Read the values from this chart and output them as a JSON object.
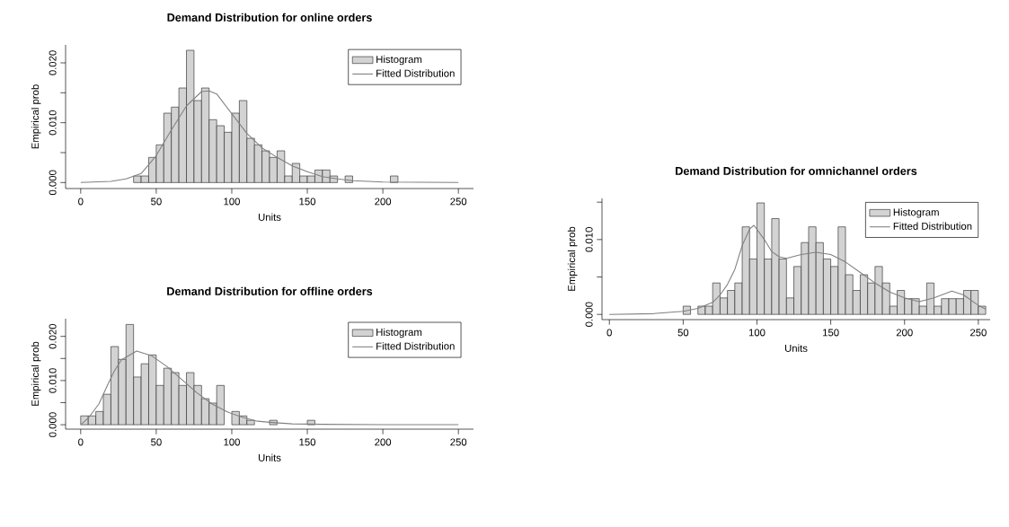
{
  "chart_data": [
    {
      "type": "histogram",
      "title": "Demand Distribution for online orders",
      "xlabel": "Units",
      "ylabel": "Empirical prob",
      "xlim": [
        -10,
        260
      ],
      "xticks": [
        0,
        50,
        100,
        150,
        200,
        250
      ],
      "ylim": [
        -0.001,
        0.023
      ],
      "yticks": [
        {
          "value": 0,
          "label": "0.000"
        },
        {
          "value": 0.005,
          "label": null
        },
        {
          "value": 0.01,
          "label": "0.010"
        },
        {
          "value": 0.015,
          "label": null
        },
        {
          "value": 0.02,
          "label": "0.020"
        }
      ],
      "legend": "top right",
      "series": [
        {
          "name": "Histogram",
          "color": "#d3d3d3",
          "bins": [
            35,
            40,
            45,
            50,
            55,
            60,
            65,
            70,
            75,
            80,
            85,
            90,
            95,
            100,
            105,
            110,
            115,
            120,
            125,
            130,
            135,
            140,
            145,
            150,
            155,
            160,
            165,
            170,
            175,
            180,
            185,
            190,
            195,
            200,
            205,
            210
          ],
          "values": [
            0.0011,
            0.0011,
            0.0042,
            0.0063,
            0.0116,
            0.0126,
            0.0158,
            0.0221,
            0.0137,
            0.0158,
            0.0105,
            0.0095,
            0.0084,
            0.0116,
            0.0137,
            0.0074,
            0.0063,
            0.0053,
            0.0042,
            0.0053,
            0.0011,
            0.0032,
            0.0011,
            0.0011,
            0.0021,
            0.0021,
            0.0011,
            0,
            0.0011,
            0,
            0,
            0,
            0,
            0,
            0.0011
          ]
        },
        {
          "name": "Fitted Distribution",
          "type": "line",
          "color": "#808080",
          "x": [
            0,
            20,
            30,
            40,
            50,
            60,
            70,
            80,
            85,
            90,
            100,
            110,
            120,
            130,
            140,
            150,
            160,
            170,
            180,
            200,
            250
          ],
          "values": [
            0,
            0.0002,
            0.0006,
            0.0015,
            0.0045,
            0.0088,
            0.0128,
            0.0152,
            0.0153,
            0.0148,
            0.0115,
            0.0082,
            0.0058,
            0.0042,
            0.0028,
            0.0018,
            0.001,
            0.0006,
            0.0003,
            0.0001,
            0
          ]
        }
      ]
    },
    {
      "type": "histogram",
      "title": "Demand Distribution for offline orders",
      "xlabel": "Units",
      "ylabel": "Empirical prob",
      "xlim": [
        -10,
        260
      ],
      "xticks": [
        0,
        50,
        100,
        150,
        200,
        250
      ],
      "ylim": [
        -0.001,
        0.024
      ],
      "yticks": [
        {
          "value": 0,
          "label": "0.000"
        },
        {
          "value": 0.005,
          "label": null
        },
        {
          "value": 0.01,
          "label": "0.010"
        },
        {
          "value": 0.015,
          "label": null
        },
        {
          "value": 0.02,
          "label": "0.020"
        }
      ],
      "legend": "top right",
      "series": [
        {
          "name": "Histogram",
          "color": "#d3d3d3",
          "bins": [
            0,
            5,
            10,
            15,
            20,
            25,
            30,
            35,
            40,
            45,
            50,
            55,
            60,
            65,
            70,
            75,
            80,
            85,
            90,
            95,
            100,
            105,
            110,
            115,
            120,
            125,
            130,
            135,
            140,
            145,
            150,
            155
          ],
          "values": [
            0.002,
            0.002,
            0.003,
            0.0069,
            0.0177,
            0.0148,
            0.0227,
            0.0108,
            0.0138,
            0.0158,
            0.0089,
            0.0128,
            0.0118,
            0.0089,
            0.0118,
            0.0089,
            0.0059,
            0.0049,
            0.0089,
            0,
            0.003,
            0.002,
            0.001,
            0,
            0,
            0.001,
            0,
            0,
            0,
            0,
            0.001
          ]
        },
        {
          "name": "Fitted Distribution",
          "type": "line",
          "color": "#808080",
          "x": [
            0,
            5,
            12,
            17,
            22,
            27,
            37,
            47,
            57,
            67,
            77,
            87,
            97,
            107,
            117,
            127,
            140,
            160,
            200,
            250
          ],
          "values": [
            0,
            0.0015,
            0.0047,
            0.0084,
            0.012,
            0.0147,
            0.0167,
            0.0156,
            0.0132,
            0.0102,
            0.0072,
            0.0047,
            0.0029,
            0.0017,
            0.0008,
            0.0005,
            0.0002,
            0.0001,
            0,
            0
          ]
        }
      ]
    },
    {
      "type": "histogram",
      "title": "Demand Distribution for omnichannel orders",
      "xlabel": "Units",
      "ylabel": "Empirical prob",
      "xlim": [
        -5,
        258
      ],
      "xticks": [
        0,
        50,
        100,
        150,
        200,
        250
      ],
      "ylim": [
        -0.0007,
        0.0155
      ],
      "yticks": [
        {
          "value": 0,
          "label": "0.000"
        },
        {
          "value": 0.005,
          "label": null
        },
        {
          "value": 0.01,
          "label": "0.010"
        },
        {
          "value": 0.015,
          "label": null
        }
      ],
      "legend": "top right",
      "series": [
        {
          "name": "Histogram",
          "color": "#d3d3d3",
          "bins": [
            50,
            55,
            60,
            65,
            70,
            75,
            80,
            85,
            90,
            95,
            100,
            105,
            110,
            115,
            120,
            125,
            130,
            135,
            140,
            145,
            150,
            155,
            160,
            165,
            170,
            175,
            180,
            185,
            190,
            195,
            200,
            205,
            210,
            215,
            220,
            225,
            230,
            235,
            240,
            245,
            250,
            255
          ],
          "values": [
            0.0011,
            0,
            0.0011,
            0.0011,
            0.0042,
            0.0022,
            0.0032,
            0.0042,
            0.0117,
            0.0074,
            0.0149,
            0.0074,
            0.0128,
            0.0074,
            0.0022,
            0.0064,
            0.0096,
            0.0117,
            0.0096,
            0.0074,
            0.0064,
            0.0117,
            0.0053,
            0.0032,
            0.0053,
            0.0042,
            0.0064,
            0.0042,
            0.0011,
            0.0032,
            0.0021,
            0.0021,
            0.0011,
            0.0042,
            0.0011,
            0.0021,
            0.0021,
            0.0021,
            0.0032,
            0.0032,
            0.0011
          ]
        },
        {
          "name": "Fitted Distribution",
          "type": "line",
          "color": "#808080",
          "x": [
            0,
            30,
            50,
            60,
            70,
            75,
            80,
            85,
            90,
            95,
            98,
            105,
            110,
            115,
            120,
            130,
            140,
            150,
            160,
            170,
            180,
            190,
            200,
            210,
            220,
            232,
            240,
            250,
            255
          ],
          "values": [
            0,
            0.0001,
            0.0004,
            0.0008,
            0.0016,
            0.0026,
            0.004,
            0.006,
            0.0092,
            0.0114,
            0.0119,
            0.01,
            0.0084,
            0.0077,
            0.0075,
            0.008,
            0.0083,
            0.008,
            0.007,
            0.0056,
            0.0042,
            0.003,
            0.0022,
            0.0017,
            0.0022,
            0.0031,
            0.0026,
            0.0012,
            0.0007
          ]
        }
      ]
    }
  ]
}
